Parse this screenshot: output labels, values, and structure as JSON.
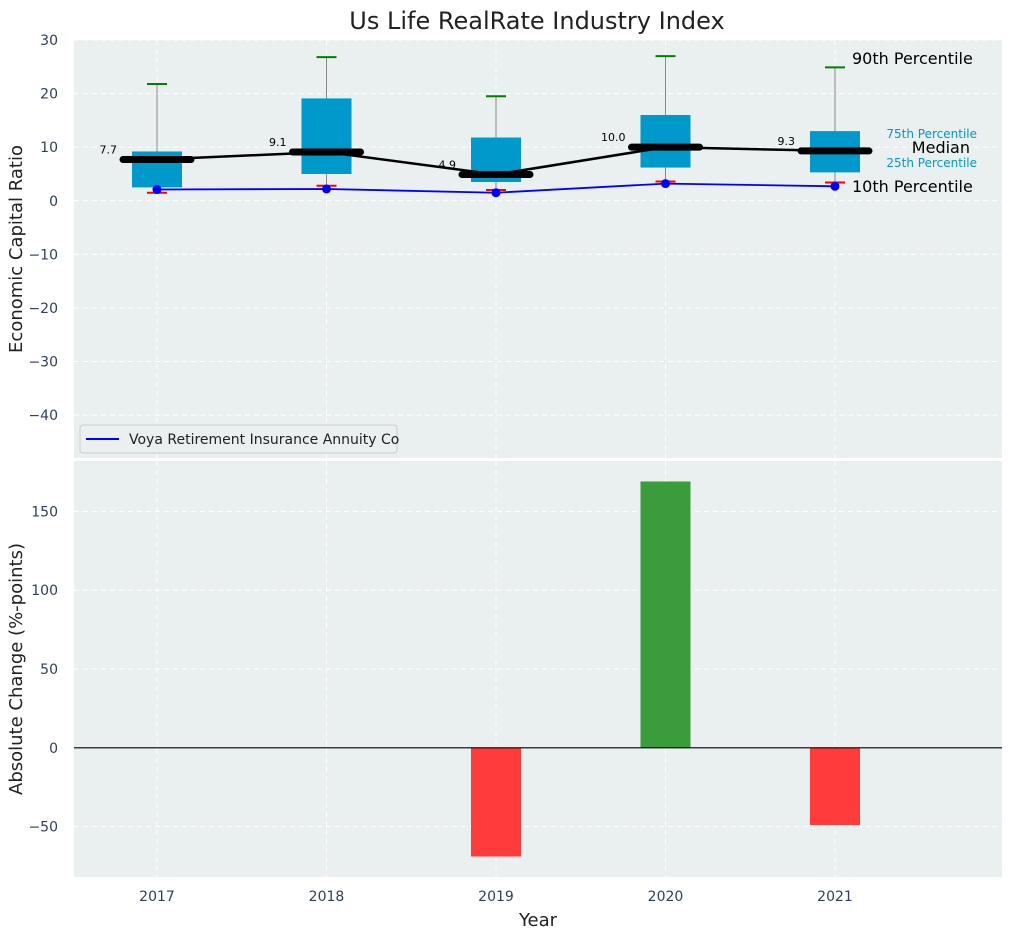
{
  "chart_data": [
    {
      "type": "box",
      "title": "Us Life RealRate Industry Index",
      "ylabel": "Economic Capital Ratio",
      "ylim": [
        -48,
        30
      ],
      "yticks": [
        -40,
        -30,
        -20,
        -10,
        0,
        10,
        20,
        30
      ],
      "categories": [
        "2017",
        "2018",
        "2019",
        "2020",
        "2021"
      ],
      "grid": true,
      "boxes": {
        "p10": [
          1.5,
          2.8,
          2.0,
          3.6,
          3.4
        ],
        "p25": [
          2.5,
          5.0,
          3.5,
          6.2,
          5.3
        ],
        "median": [
          7.7,
          9.1,
          4.9,
          10.0,
          9.3
        ],
        "p75": [
          9.2,
          19.1,
          11.8,
          16.0,
          13.0
        ],
        "p90": [
          21.8,
          26.8,
          19.5,
          27.0,
          24.9
        ]
      },
      "median_labels": [
        "7.7",
        "9.1",
        "4.9",
        "10.0",
        "9.3"
      ],
      "series": [
        {
          "name": "Voya Retirement Insurance Annuity Co",
          "values": [
            2.1,
            2.2,
            1.5,
            3.2,
            2.7
          ],
          "color": "#0000ff"
        }
      ],
      "annotations": {
        "p90": "90th Percentile",
        "p75": "75th Percentile",
        "median": "Median",
        "p25": "25th Percentile",
        "p10": "10th Percentile"
      },
      "legend_placement": "lower-left",
      "colors": {
        "box": "#0099cc",
        "median": "#000000",
        "p90_cap": "#008000",
        "p10_cap": "#ff0000",
        "annotation_box": "#0099cc"
      }
    },
    {
      "type": "bar",
      "ylabel": "Absolute Change (%-points)",
      "xlabel": "Year",
      "ylim": [
        -82,
        182
      ],
      "yticks": [
        -50,
        0,
        50,
        100,
        150
      ],
      "categories": [
        "2017",
        "2018",
        "2019",
        "2020",
        "2021"
      ],
      "values": [
        0,
        0,
        -69,
        169,
        -49
      ],
      "grid": true,
      "colors": {
        "positive": "#3a9c3a",
        "negative": "#ff3b3b"
      }
    }
  ]
}
